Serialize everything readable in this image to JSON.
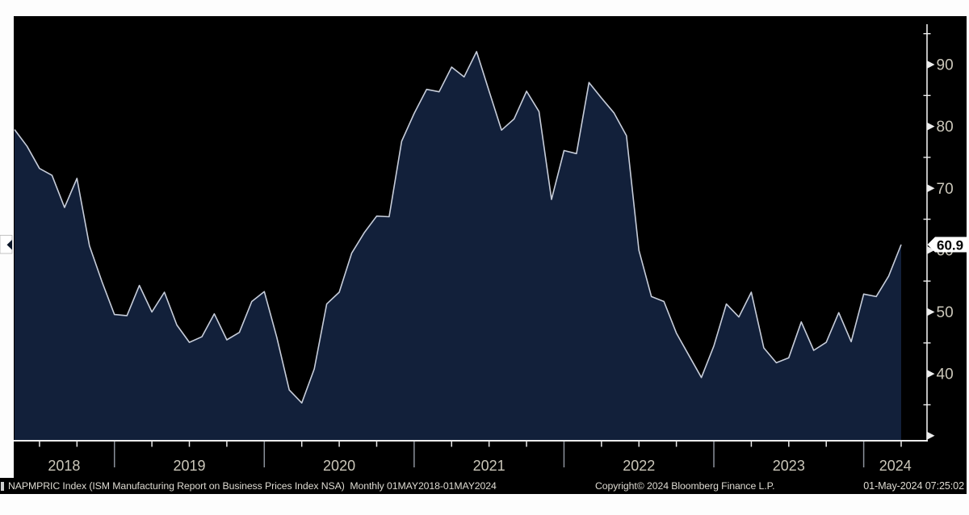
{
  "window": {
    "background": "#fdfdfd",
    "panel_bg": "#000000"
  },
  "chart_data": {
    "type": "area",
    "title": "",
    "series_name": "NAPMPRIC Index",
    "frequency": "Monthly",
    "range": "01MAY2018-01MAY2024",
    "x": [
      "2018-05",
      "2018-06",
      "2018-07",
      "2018-08",
      "2018-09",
      "2018-10",
      "2018-11",
      "2018-12",
      "2019-01",
      "2019-02",
      "2019-03",
      "2019-04",
      "2019-05",
      "2019-06",
      "2019-07",
      "2019-08",
      "2019-09",
      "2019-10",
      "2019-11",
      "2019-12",
      "2020-01",
      "2020-02",
      "2020-03",
      "2020-04",
      "2020-05",
      "2020-06",
      "2020-07",
      "2020-08",
      "2020-09",
      "2020-10",
      "2020-11",
      "2020-12",
      "2021-01",
      "2021-02",
      "2021-03",
      "2021-04",
      "2021-05",
      "2021-06",
      "2021-07",
      "2021-08",
      "2021-09",
      "2021-10",
      "2021-11",
      "2021-12",
      "2022-01",
      "2022-02",
      "2022-03",
      "2022-04",
      "2022-05",
      "2022-06",
      "2022-07",
      "2022-08",
      "2022-09",
      "2022-10",
      "2022-11",
      "2022-12",
      "2023-01",
      "2023-02",
      "2023-03",
      "2023-04",
      "2023-05",
      "2023-06",
      "2023-07",
      "2023-08",
      "2023-09",
      "2023-10",
      "2023-11",
      "2023-12",
      "2024-01",
      "2024-02",
      "2024-03",
      "2024-04"
    ],
    "values": [
      79.5,
      76.8,
      73.2,
      72.1,
      66.9,
      71.6,
      60.7,
      54.9,
      49.6,
      49.4,
      54.3,
      50.0,
      53.2,
      47.9,
      45.1,
      46.0,
      49.7,
      45.5,
      46.7,
      51.7,
      53.3,
      45.9,
      37.4,
      35.3,
      40.8,
      51.3,
      53.2,
      59.5,
      62.8,
      65.5,
      65.4,
      77.6,
      82.1,
      86.0,
      85.6,
      89.6,
      88.0,
      92.1,
      85.7,
      79.4,
      81.2,
      85.7,
      82.4,
      68.2,
      76.1,
      75.6,
      87.1,
      84.6,
      82.2,
      78.5,
      60.0,
      52.5,
      51.7,
      46.6,
      43.0,
      39.4,
      44.5,
      51.3,
      49.2,
      53.2,
      44.2,
      41.8,
      42.6,
      48.4,
      43.8,
      45.1,
      49.9,
      45.2,
      52.9,
      52.5,
      55.8,
      60.9
    ],
    "last_value": 60.9,
    "last_value_label": "60.9",
    "ylim": [
      30,
      95
    ],
    "yticks_labeled": [
      90,
      80,
      70,
      60,
      50,
      40
    ],
    "yticks_major": [
      90,
      80,
      70,
      60,
      50,
      40,
      30
    ],
    "yticks_minor": [
      95,
      85,
      75,
      65,
      55,
      45,
      35
    ],
    "x_year_labels": [
      "2018",
      "2019",
      "2020",
      "2021",
      "2022",
      "2023",
      "2024"
    ],
    "legend": "none",
    "grid": false,
    "colors": {
      "fill": "#12203a",
      "line": "#c7cdda",
      "axis": "#ececec",
      "tick_label": "#cbc7ba",
      "year_separator": "#8b919b",
      "last_value_box_bg": "#ffffff",
      "last_value_text": "#000000"
    }
  },
  "footer": {
    "left": "NAPMPRIC Index (ISM Manufacturing Report on Business Prices Index NSA)  Monthly 01MAY2018-01MAY2024",
    "center": "Copyright© 2024 Bloomberg Finance L.P.",
    "right": "01-May-2024 07:25:02"
  }
}
